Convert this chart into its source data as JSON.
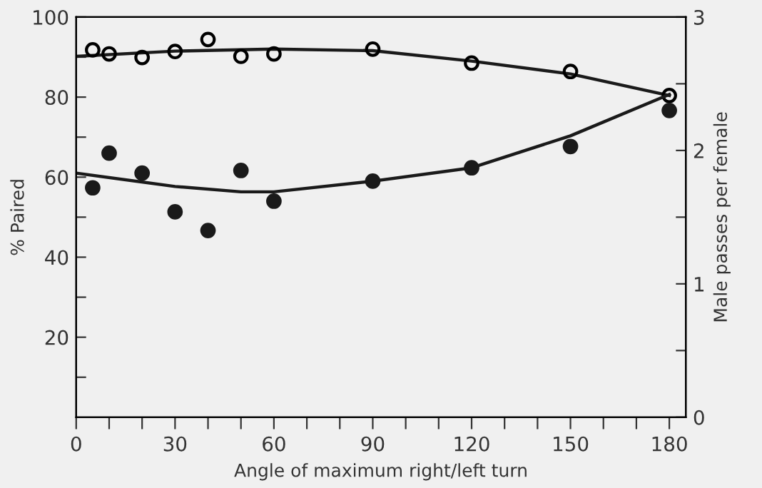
{
  "chart_data": {
    "type": "scatter",
    "xlabel": "Angle of maximum right/left turn",
    "ylabel": "% Paired",
    "y2label": "Male passes per female",
    "xlim": [
      0,
      185
    ],
    "xticks": [
      0,
      {
        "value": 10,
        "label": null
      },
      {
        "value": 20,
        "label": null
      },
      30,
      {
        "value": 40,
        "label": null
      },
      {
        "value": 50,
        "label": null
      },
      60,
      {
        "value": 70,
        "label": null
      },
      {
        "value": 80,
        "label": null
      },
      90,
      {
        "value": 100,
        "label": null
      },
      {
        "value": 110,
        "label": null
      },
      120,
      {
        "value": 130,
        "label": null
      },
      {
        "value": 140,
        "label": null
      },
      150,
      {
        "value": 160,
        "label": null
      },
      {
        "value": 170,
        "label": null
      },
      180
    ],
    "ylim": [
      0,
      100
    ],
    "yticks": [
      {
        "value": 10,
        "label": null
      },
      20,
      {
        "value": 30,
        "label": null
      },
      40,
      {
        "value": 50,
        "label": null
      },
      60,
      {
        "value": 70,
        "label": null
      },
      80,
      {
        "value": 90,
        "label": null
      },
      100
    ],
    "y2lim": [
      0,
      3
    ],
    "y2ticks": [
      0,
      {
        "value": 0.5,
        "label": null
      },
      1,
      {
        "value": 1.5,
        "label": null
      },
      2,
      {
        "value": 2.5,
        "label": null
      },
      3
    ],
    "grid": false,
    "series": [
      {
        "marker": "circle",
        "color": "#000000",
        "x": [
          5,
          10,
          20,
          30,
          40,
          50,
          60,
          90,
          120,
          150,
          180
        ],
        "values": [
          91.8,
          90.8,
          89.9,
          91.4,
          94.4,
          90.2,
          90.8,
          92.0,
          88.5,
          86.4,
          80.4
        ]
      },
      {
        "marker": "circle",
        "axis": "y2",
        "color": "#1a1a1a",
        "x": [
          5,
          10,
          20,
          30,
          40,
          50,
          60,
          90,
          120,
          150,
          180
        ],
        "values": [
          1.72,
          1.98,
          1.83,
          1.54,
          1.4,
          1.85,
          1.62,
          1.77,
          1.87,
          2.03,
          2.3
        ]
      },
      {
        "type": "line",
        "marker": "none",
        "color": "#1a1a1a",
        "x": [
          0,
          30,
          60,
          90,
          120,
          150,
          180
        ],
        "values": [
          90.2,
          91.5,
          92.0,
          91.6,
          89.0,
          85.8,
          80.4
        ]
      },
      {
        "type": "line",
        "marker": "none",
        "axis": "y2",
        "color": "#1a1a1a",
        "x": [
          0,
          30,
          50,
          60,
          90,
          120,
          150,
          180
        ],
        "values": [
          1.83,
          1.73,
          1.69,
          1.69,
          1.77,
          1.87,
          2.11,
          2.42
        ]
      }
    ]
  }
}
